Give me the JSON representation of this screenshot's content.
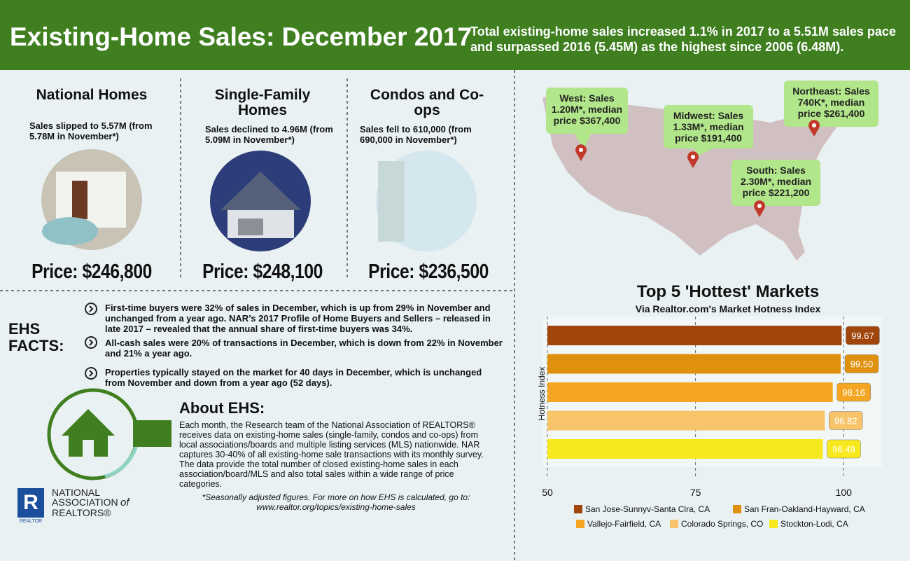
{
  "header": {
    "title": "Existing-Home Sales: December 2017",
    "summary": "Total existing-home sales increased 1.1% in 2017 to a 5.51M sales pace and surpassed 2016 (5.45M) as the highest since 2006 (6.48M)."
  },
  "segments": [
    {
      "title": "National Homes",
      "text": "Sales slipped to 5.57M (from 5.78M in November*)",
      "price": "Price: $246,800"
    },
    {
      "title": "Single-Family Homes",
      "text": "Sales declined to 4.96M (from 5.09M in November*)",
      "price": "Price: $248,100"
    },
    {
      "title": "Condos and Co-ops",
      "text": "Sales fell to 610,000 (from 690,000 in November*)",
      "price": "Price: $236,500"
    }
  ],
  "facts": {
    "label": "EHS FACTS:",
    "items": [
      "First-time buyers were 32% of sales in December, which is up from 29% in November and unchanged from a year ago. NAR’s 2017 Profile of Home Buyers and Sellers – released in late 2017 – revealed that the annual share of first-time buyers was 34%.",
      "All-cash sales were 20% of transactions in December, which is down from 22% in November and 21% a year ago.",
      "Properties typically stayed on the market for 40 days in December, which is unchanged from November and down from a year ago (52 days)."
    ]
  },
  "about": {
    "title": "About EHS:",
    "text": "Each month, the Research team of the National Association of REALTORS® receives data on existing-home sales (single-family, condos and co-ops) from local associations/boards and multiple listing services (MLS) nationwide. NAR captures 30-40% of all existing-home sale transactions with its monthly survey. The data provide the total number of closed existing-home sales in each association/board/MLS and also total sales within a wide range of price categories.",
    "note": "*Seasonally adjusted figures. For more on how EHS is calculated, go to:",
    "url": "www.realtor.org/topics/existing-home-sales"
  },
  "logo": {
    "line1": "NATIONAL",
    "line2": "ASSOCIATION",
    "of": "of",
    "line3": "REALTORS®",
    "mark": "REALTOR"
  },
  "regions": [
    {
      "lines": [
        "West: Sales",
        "1.20M*, median",
        "price $367,400"
      ]
    },
    {
      "lines": [
        "Midwest: Sales",
        "1.33M*, median",
        "price $191,400"
      ]
    },
    {
      "lines": [
        "Northeast: Sales",
        "740K*, median",
        "price $261,400"
      ]
    },
    {
      "lines": [
        "South: Sales",
        "2.30M*, median",
        "price $221,200"
      ]
    }
  ],
  "chart_data": {
    "type": "bar",
    "orientation": "horizontal",
    "title": "Top 5 'Hottest' Markets",
    "subtitle": "Via Realtor.com's Market Hotness Index",
    "ylabel": "Hotness Index",
    "categories": [
      "San Jose-Sunnyv-Santa Clra, CA",
      "San Fran-Oakland-Hayward, CA",
      "Vallejo-Fairfield, CA",
      "Colorado Springs, CO",
      "Stockton-Lodi, CA"
    ],
    "values": [
      99.67,
      99.5,
      98.16,
      96.82,
      96.49
    ],
    "value_labels": [
      "99.67",
      "99.50",
      "98.16",
      "96.82",
      "96.49"
    ],
    "colors": [
      "#a0460d",
      "#e0900f",
      "#f4a623",
      "#f8c46a",
      "#f8e81e"
    ],
    "xlim": [
      50,
      106
    ],
    "xticks": [
      50,
      75,
      100
    ],
    "grid": true
  }
}
